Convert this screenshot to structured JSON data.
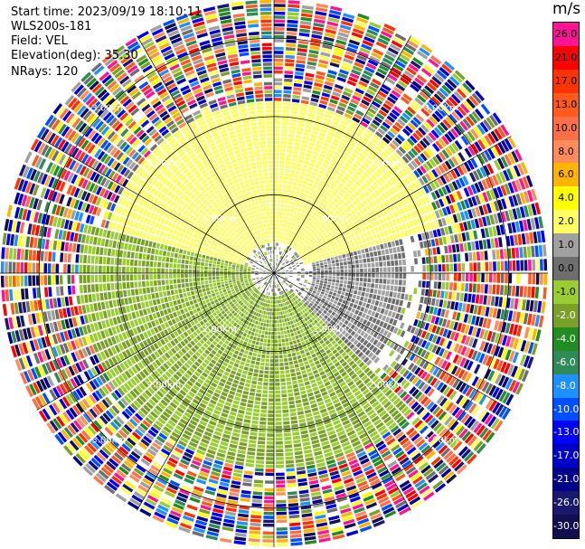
{
  "header": {
    "start_time": "Start time: 2023/09/19 18:10:11",
    "instrument": "WLS200s-181",
    "field": "Field: VEL",
    "elevation": "Elevation(deg): 35.30",
    "nrays": "NRays: 120"
  },
  "colorbar": {
    "unit": "m/s",
    "levels": [
      {
        "label": "26.0",
        "color": "#ff1493"
      },
      {
        "label": "21.0",
        "color": "#ff0000"
      },
      {
        "label": "17.0",
        "color": "#ff3300"
      },
      {
        "label": "13.0",
        "color": "#ff5a1e"
      },
      {
        "label": "10.0",
        "color": "#ff6e46"
      },
      {
        "label": "8.0",
        "color": "#ff8c5a"
      },
      {
        "label": "6.0",
        "color": "#ffb400"
      },
      {
        "label": "4.0",
        "color": "#ffff00"
      },
      {
        "label": "2.0",
        "color": "#ffff64"
      },
      {
        "label": "1.0",
        "color": "#a0a0a0"
      },
      {
        "label": "0.0",
        "color": "#6e6e6e"
      },
      {
        "label": "-1.0",
        "color": "#9acd32"
      },
      {
        "label": "-2.0",
        "color": "#7aa02a"
      },
      {
        "label": "-4.0",
        "color": "#228b22"
      },
      {
        "label": "-6.0",
        "color": "#2e8b57"
      },
      {
        "label": "-8.0",
        "color": "#1e90ff"
      },
      {
        "label": "-10.0",
        "color": "#0050ff"
      },
      {
        "label": "-13.0",
        "color": "#0000ff"
      },
      {
        "label": "-17.0",
        "color": "#0000c8"
      },
      {
        "label": "-21.0",
        "color": "#00008b"
      },
      {
        "label": "-26.0",
        "color": "#191970"
      },
      {
        "label": "-30.0",
        "color": "#101050"
      }
    ]
  },
  "chart_data": {
    "type": "heatmap",
    "projection": "polar PPI",
    "field": "VEL",
    "rays": 120,
    "range_ring_labels": [
      "1.00km",
      "2.00km",
      "3.00km"
    ],
    "range_rings_km": [
      1,
      2,
      3
    ],
    "max_range_km": 3.5,
    "near_field_pattern": [
      {
        "azimuth_range_deg": [
          285,
          75
        ],
        "range_km": [
          0.4,
          2.2
        ],
        "velocity_ms": 2.0,
        "description_color": "#ffff00"
      },
      {
        "azimuth_range_deg": [
          75,
          135
        ],
        "range_km": [
          0.5,
          1.7
        ],
        "velocity_ms": 0.5,
        "description_color": "#6e6e6e"
      },
      {
        "azimuth_range_deg": [
          135,
          285
        ],
        "range_km": [
          0.3,
          2.5
        ],
        "velocity_ms": -1.5,
        "description_color": "#7aa02a"
      }
    ],
    "far_field": "noise (random velocities beyond ~2.5 km)"
  }
}
